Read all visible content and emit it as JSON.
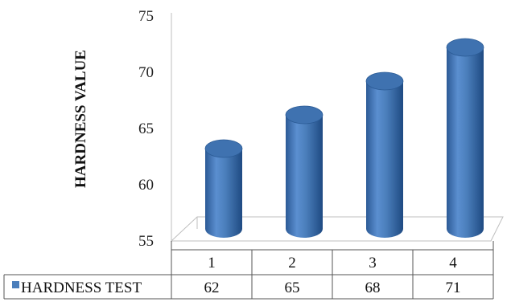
{
  "chart_data": {
    "type": "bar",
    "style": "3d-cylinder",
    "title": "",
    "xlabel": "",
    "ylabel": "HARDNESS VALUE",
    "ylim": [
      55,
      75
    ],
    "yticks": [
      55,
      60,
      65,
      70,
      75
    ],
    "categories": [
      "1",
      "2",
      "3",
      "4"
    ],
    "series": [
      {
        "name": "HARDNESS TEST",
        "values": [
          62,
          65,
          68,
          71
        ],
        "color": "#4a7ebb"
      }
    ],
    "legend": "data-table-left",
    "grid": false,
    "data_table": true
  }
}
